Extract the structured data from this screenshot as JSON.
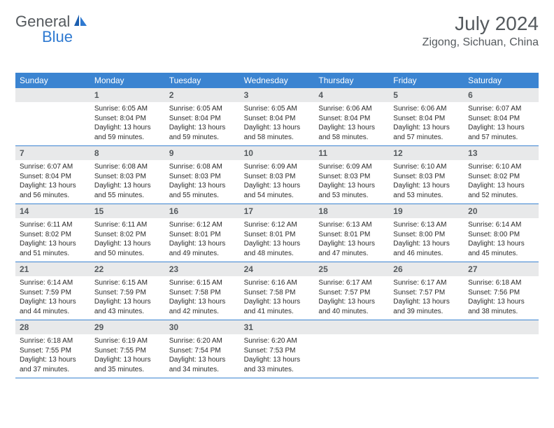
{
  "logo": {
    "text_gray": "General",
    "text_blue": "Blue"
  },
  "header": {
    "month_title": "July 2024",
    "location": "Zigong, Sichuan, China"
  },
  "colors": {
    "header_bar": "#3b84d1",
    "daynum_bg": "#e8e9ea",
    "text_gray": "#555a5e",
    "text_black": "#2b2b2b",
    "logo_blue": "#2f7ad1",
    "background": "#ffffff"
  },
  "typography": {
    "month_title_fontsize": 28,
    "location_fontsize": 16,
    "weekday_fontsize": 12,
    "daynum_fontsize": 12,
    "cell_fontsize": 10
  },
  "weekdays": [
    "Sunday",
    "Monday",
    "Tuesday",
    "Wednesday",
    "Thursday",
    "Friday",
    "Saturday"
  ],
  "weeks": [
    [
      {
        "num": "",
        "sunrise": "",
        "sunset": "",
        "daylight": ""
      },
      {
        "num": "1",
        "sunrise": "Sunrise: 6:05 AM",
        "sunset": "Sunset: 8:04 PM",
        "daylight": "Daylight: 13 hours and 59 minutes."
      },
      {
        "num": "2",
        "sunrise": "Sunrise: 6:05 AM",
        "sunset": "Sunset: 8:04 PM",
        "daylight": "Daylight: 13 hours and 59 minutes."
      },
      {
        "num": "3",
        "sunrise": "Sunrise: 6:05 AM",
        "sunset": "Sunset: 8:04 PM",
        "daylight": "Daylight: 13 hours and 58 minutes."
      },
      {
        "num": "4",
        "sunrise": "Sunrise: 6:06 AM",
        "sunset": "Sunset: 8:04 PM",
        "daylight": "Daylight: 13 hours and 58 minutes."
      },
      {
        "num": "5",
        "sunrise": "Sunrise: 6:06 AM",
        "sunset": "Sunset: 8:04 PM",
        "daylight": "Daylight: 13 hours and 57 minutes."
      },
      {
        "num": "6",
        "sunrise": "Sunrise: 6:07 AM",
        "sunset": "Sunset: 8:04 PM",
        "daylight": "Daylight: 13 hours and 57 minutes."
      }
    ],
    [
      {
        "num": "7",
        "sunrise": "Sunrise: 6:07 AM",
        "sunset": "Sunset: 8:04 PM",
        "daylight": "Daylight: 13 hours and 56 minutes."
      },
      {
        "num": "8",
        "sunrise": "Sunrise: 6:08 AM",
        "sunset": "Sunset: 8:03 PM",
        "daylight": "Daylight: 13 hours and 55 minutes."
      },
      {
        "num": "9",
        "sunrise": "Sunrise: 6:08 AM",
        "sunset": "Sunset: 8:03 PM",
        "daylight": "Daylight: 13 hours and 55 minutes."
      },
      {
        "num": "10",
        "sunrise": "Sunrise: 6:09 AM",
        "sunset": "Sunset: 8:03 PM",
        "daylight": "Daylight: 13 hours and 54 minutes."
      },
      {
        "num": "11",
        "sunrise": "Sunrise: 6:09 AM",
        "sunset": "Sunset: 8:03 PM",
        "daylight": "Daylight: 13 hours and 53 minutes."
      },
      {
        "num": "12",
        "sunrise": "Sunrise: 6:10 AM",
        "sunset": "Sunset: 8:03 PM",
        "daylight": "Daylight: 13 hours and 53 minutes."
      },
      {
        "num": "13",
        "sunrise": "Sunrise: 6:10 AM",
        "sunset": "Sunset: 8:02 PM",
        "daylight": "Daylight: 13 hours and 52 minutes."
      }
    ],
    [
      {
        "num": "14",
        "sunrise": "Sunrise: 6:11 AM",
        "sunset": "Sunset: 8:02 PM",
        "daylight": "Daylight: 13 hours and 51 minutes."
      },
      {
        "num": "15",
        "sunrise": "Sunrise: 6:11 AM",
        "sunset": "Sunset: 8:02 PM",
        "daylight": "Daylight: 13 hours and 50 minutes."
      },
      {
        "num": "16",
        "sunrise": "Sunrise: 6:12 AM",
        "sunset": "Sunset: 8:01 PM",
        "daylight": "Daylight: 13 hours and 49 minutes."
      },
      {
        "num": "17",
        "sunrise": "Sunrise: 6:12 AM",
        "sunset": "Sunset: 8:01 PM",
        "daylight": "Daylight: 13 hours and 48 minutes."
      },
      {
        "num": "18",
        "sunrise": "Sunrise: 6:13 AM",
        "sunset": "Sunset: 8:01 PM",
        "daylight": "Daylight: 13 hours and 47 minutes."
      },
      {
        "num": "19",
        "sunrise": "Sunrise: 6:13 AM",
        "sunset": "Sunset: 8:00 PM",
        "daylight": "Daylight: 13 hours and 46 minutes."
      },
      {
        "num": "20",
        "sunrise": "Sunrise: 6:14 AM",
        "sunset": "Sunset: 8:00 PM",
        "daylight": "Daylight: 13 hours and 45 minutes."
      }
    ],
    [
      {
        "num": "21",
        "sunrise": "Sunrise: 6:14 AM",
        "sunset": "Sunset: 7:59 PM",
        "daylight": "Daylight: 13 hours and 44 minutes."
      },
      {
        "num": "22",
        "sunrise": "Sunrise: 6:15 AM",
        "sunset": "Sunset: 7:59 PM",
        "daylight": "Daylight: 13 hours and 43 minutes."
      },
      {
        "num": "23",
        "sunrise": "Sunrise: 6:15 AM",
        "sunset": "Sunset: 7:58 PM",
        "daylight": "Daylight: 13 hours and 42 minutes."
      },
      {
        "num": "24",
        "sunrise": "Sunrise: 6:16 AM",
        "sunset": "Sunset: 7:58 PM",
        "daylight": "Daylight: 13 hours and 41 minutes."
      },
      {
        "num": "25",
        "sunrise": "Sunrise: 6:17 AM",
        "sunset": "Sunset: 7:57 PM",
        "daylight": "Daylight: 13 hours and 40 minutes."
      },
      {
        "num": "26",
        "sunrise": "Sunrise: 6:17 AM",
        "sunset": "Sunset: 7:57 PM",
        "daylight": "Daylight: 13 hours and 39 minutes."
      },
      {
        "num": "27",
        "sunrise": "Sunrise: 6:18 AM",
        "sunset": "Sunset: 7:56 PM",
        "daylight": "Daylight: 13 hours and 38 minutes."
      }
    ],
    [
      {
        "num": "28",
        "sunrise": "Sunrise: 6:18 AM",
        "sunset": "Sunset: 7:55 PM",
        "daylight": "Daylight: 13 hours and 37 minutes."
      },
      {
        "num": "29",
        "sunrise": "Sunrise: 6:19 AM",
        "sunset": "Sunset: 7:55 PM",
        "daylight": "Daylight: 13 hours and 35 minutes."
      },
      {
        "num": "30",
        "sunrise": "Sunrise: 6:20 AM",
        "sunset": "Sunset: 7:54 PM",
        "daylight": "Daylight: 13 hours and 34 minutes."
      },
      {
        "num": "31",
        "sunrise": "Sunrise: 6:20 AM",
        "sunset": "Sunset: 7:53 PM",
        "daylight": "Daylight: 13 hours and 33 minutes."
      },
      {
        "num": "",
        "sunrise": "",
        "sunset": "",
        "daylight": ""
      },
      {
        "num": "",
        "sunrise": "",
        "sunset": "",
        "daylight": ""
      },
      {
        "num": "",
        "sunrise": "",
        "sunset": "",
        "daylight": ""
      }
    ]
  ]
}
